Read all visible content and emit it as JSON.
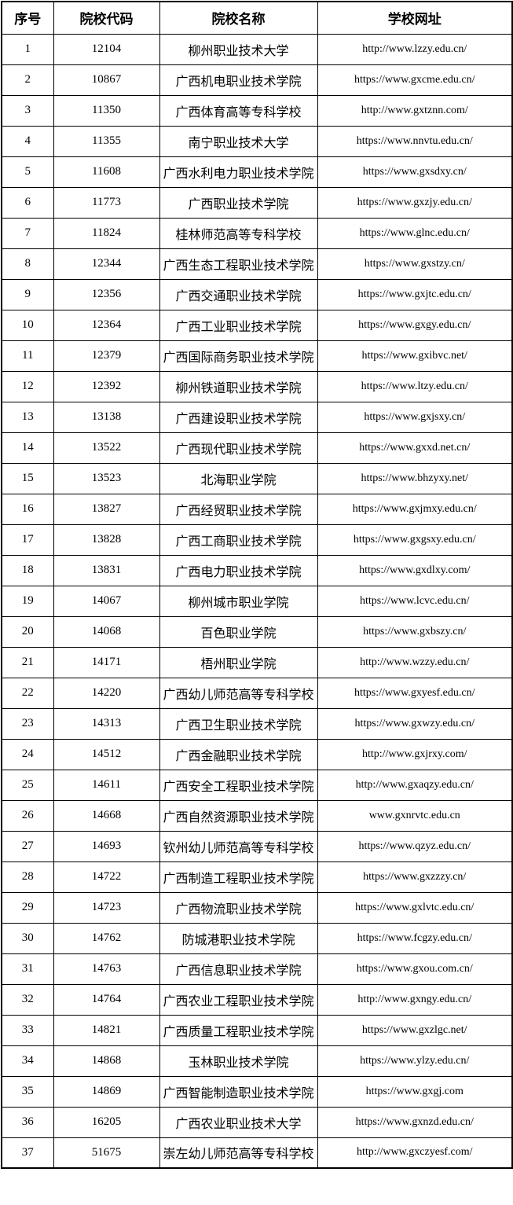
{
  "table": {
    "headers": {
      "no": "序号",
      "code": "院校代码",
      "name": "院校名称",
      "url": "学校网址"
    },
    "rows": [
      {
        "no": "1",
        "code": "12104",
        "name": "柳州职业技术大学",
        "url": "http://www.lzzy.edu.cn/"
      },
      {
        "no": "2",
        "code": "10867",
        "name": "广西机电职业技术学院",
        "url": "https://www.gxcme.edu.cn/"
      },
      {
        "no": "3",
        "code": "11350",
        "name": "广西体育高等专科学校",
        "url": "http://www.gxtznn.com/"
      },
      {
        "no": "4",
        "code": "11355",
        "name": "南宁职业技术大学",
        "url": "https://www.nnvtu.edu.cn/"
      },
      {
        "no": "5",
        "code": "11608",
        "name": "广西水利电力职业技术学院",
        "url": "https://www.gxsdxy.cn/"
      },
      {
        "no": "6",
        "code": "11773",
        "name": "广西职业技术学院",
        "url": "https://www.gxzjy.edu.cn/"
      },
      {
        "no": "7",
        "code": "11824",
        "name": "桂林师范高等专科学校",
        "url": "https://www.glnc.edu.cn/"
      },
      {
        "no": "8",
        "code": "12344",
        "name": "广西生态工程职业技术学院",
        "url": "https://www.gxstzy.cn/"
      },
      {
        "no": "9",
        "code": "12356",
        "name": "广西交通职业技术学院",
        "url": "https://www.gxjtc.edu.cn/"
      },
      {
        "no": "10",
        "code": "12364",
        "name": "广西工业职业技术学院",
        "url": "https://www.gxgy.edu.cn/"
      },
      {
        "no": "11",
        "code": "12379",
        "name": "广西国际商务职业技术学院",
        "url": "https://www.gxibvc.net/"
      },
      {
        "no": "12",
        "code": "12392",
        "name": "柳州铁道职业技术学院",
        "url": "https://www.ltzy.edu.cn/"
      },
      {
        "no": "13",
        "code": "13138",
        "name": "广西建设职业技术学院",
        "url": "https://www.gxjsxy.cn/"
      },
      {
        "no": "14",
        "code": "13522",
        "name": "广西现代职业技术学院",
        "url": "https://www.gxxd.net.cn/"
      },
      {
        "no": "15",
        "code": "13523",
        "name": "北海职业学院",
        "url": "https://www.bhzyxy.net/"
      },
      {
        "no": "16",
        "code": "13827",
        "name": "广西经贸职业技术学院",
        "url": "https://www.gxjmxy.edu.cn/"
      },
      {
        "no": "17",
        "code": "13828",
        "name": "广西工商职业技术学院",
        "url": "https://www.gxgsxy.edu.cn/"
      },
      {
        "no": "18",
        "code": "13831",
        "name": "广西电力职业技术学院",
        "url": "https://www.gxdlxy.com/"
      },
      {
        "no": "19",
        "code": "14067",
        "name": "柳州城市职业学院",
        "url": "https://www.lcvc.edu.cn/"
      },
      {
        "no": "20",
        "code": "14068",
        "name": "百色职业学院",
        "url": "https://www.gxbszy.cn/"
      },
      {
        "no": "21",
        "code": "14171",
        "name": "梧州职业学院",
        "url": "http://www.wzzy.edu.cn/"
      },
      {
        "no": "22",
        "code": "14220",
        "name": "广西幼儿师范高等专科学校",
        "url": "https://www.gxyesf.edu.cn/"
      },
      {
        "no": "23",
        "code": "14313",
        "name": "广西卫生职业技术学院",
        "url": "https://www.gxwzy.edu.cn/"
      },
      {
        "no": "24",
        "code": "14512",
        "name": "广西金融职业技术学院",
        "url": "http://www.gxjrxy.com/"
      },
      {
        "no": "25",
        "code": "14611",
        "name": "广西安全工程职业技术学院",
        "url": "http://www.gxaqzy.edu.cn/"
      },
      {
        "no": "26",
        "code": "14668",
        "name": "广西自然资源职业技术学院",
        "url": "www.gxnrvtc.edu.cn"
      },
      {
        "no": "27",
        "code": "14693",
        "name": "钦州幼儿师范高等专科学校",
        "url": "https://www.qzyz.edu.cn/"
      },
      {
        "no": "28",
        "code": "14722",
        "name": "广西制造工程职业技术学院",
        "url": "https://www.gxzzzy.cn/"
      },
      {
        "no": "29",
        "code": "14723",
        "name": "广西物流职业技术学院",
        "url": "https://www.gxlvtc.edu.cn/"
      },
      {
        "no": "30",
        "code": "14762",
        "name": "防城港职业技术学院",
        "url": "https://www.fcgzy.edu.cn/"
      },
      {
        "no": "31",
        "code": "14763",
        "name": "广西信息职业技术学院",
        "url": "https://www.gxou.com.cn/"
      },
      {
        "no": "32",
        "code": "14764",
        "name": "广西农业工程职业技术学院",
        "url": "http://www.gxngy.edu.cn/"
      },
      {
        "no": "33",
        "code": "14821",
        "name": "广西质量工程职业技术学院",
        "url": "https://www.gxzlgc.net/"
      },
      {
        "no": "34",
        "code": "14868",
        "name": "玉林职业技术学院",
        "url": "https://www.ylzy.edu.cn/"
      },
      {
        "no": "35",
        "code": "14869",
        "name": "广西智能制造职业技术学院",
        "url": "https://www.gxgj.com"
      },
      {
        "no": "36",
        "code": "16205",
        "name": "广西农业职业技术大学",
        "url": "https://www.gxnzd.edu.cn/"
      },
      {
        "no": "37",
        "code": "51675",
        "name": "崇左幼儿师范高等专科学校",
        "url": "http://www.gxczyesf.com/"
      }
    ]
  },
  "colors": {
    "text": "#000000",
    "border": "#000000",
    "background": "#ffffff"
  }
}
